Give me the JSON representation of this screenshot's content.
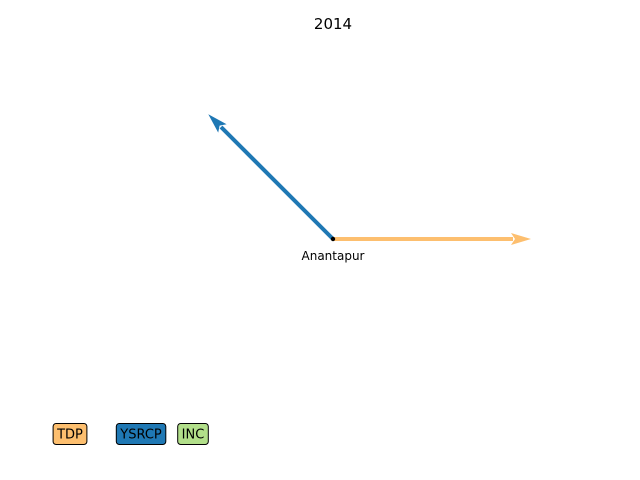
{
  "chart_data": {
    "type": "arrow",
    "title": "2014",
    "xlabel": "",
    "ylabel": "",
    "grid": false,
    "axes_visible": false,
    "origin": {
      "label": "Anantapur",
      "x": 0,
      "y": 0
    },
    "series": [
      {
        "name": "TDP",
        "color": "#fdbf6f",
        "dx": 1.0,
        "dy": 0.0
      },
      {
        "name": "YSRCP",
        "color": "#1f78b4",
        "dx": -0.63,
        "dy": 0.63
      },
      {
        "name": "INC",
        "color": "#b2df8a",
        "dx": 0.0,
        "dy": 0.0
      }
    ],
    "legend": {
      "placement": "bottom-left",
      "items": [
        {
          "label": "TDP",
          "color": "#fdbf6f"
        },
        {
          "label": "YSRCP",
          "color": "#1f78b4"
        },
        {
          "label": "INC",
          "color": "#b2df8a"
        }
      ]
    }
  }
}
